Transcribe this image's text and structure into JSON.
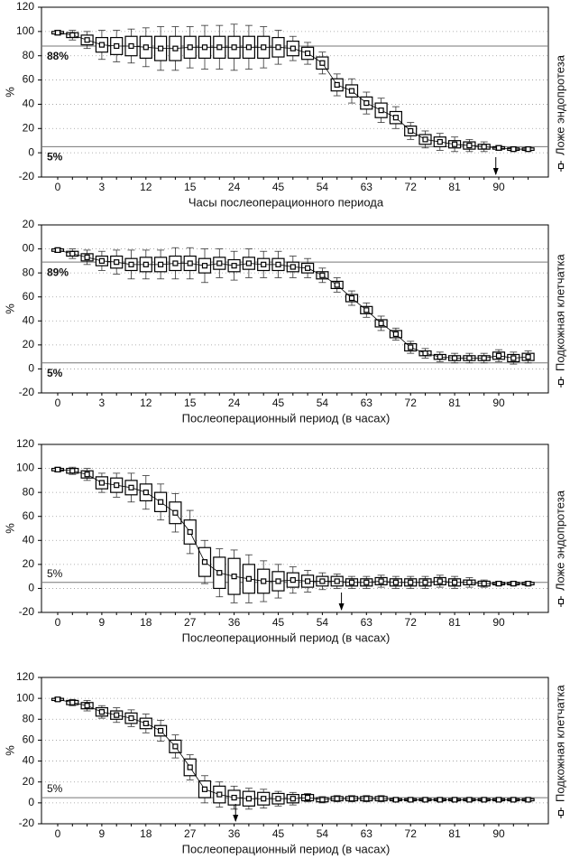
{
  "chart_data": [
    {
      "type": "box",
      "x_label": "Часы послеоперационного периода",
      "y_label": "%",
      "legend": "Ложе эндопротеза",
      "categories": [
        "0",
        null,
        null,
        "3",
        null,
        null,
        "12",
        null,
        null,
        "15",
        null,
        null,
        "24",
        null,
        null,
        "45",
        null,
        null,
        "54",
        null,
        null,
        "63",
        null,
        null,
        "72",
        null,
        null,
        "81",
        null,
        null,
        "90",
        null,
        null
      ],
      "values": [
        99,
        97,
        93,
        89,
        88,
        88,
        87,
        86,
        86,
        87,
        87,
        87,
        87,
        87,
        87,
        87,
        86,
        82,
        74,
        56,
        51,
        41,
        35,
        29,
        18,
        11,
        9,
        7,
        6,
        5,
        4,
        3,
        3
      ],
      "box": [
        1,
        2,
        4,
        6,
        7,
        8,
        9,
        10,
        10,
        9,
        9,
        9,
        9,
        9,
        9,
        8,
        6,
        5,
        5,
        5,
        5,
        5,
        6,
        5,
        4,
        4,
        4,
        3,
        3,
        2,
        1,
        1,
        1
      ],
      "whisker": [
        2,
        4,
        7,
        12,
        13,
        14,
        16,
        18,
        18,
        17,
        18,
        18,
        19,
        18,
        17,
        14,
        10,
        9,
        9,
        9,
        10,
        9,
        10,
        9,
        7,
        7,
        7,
        6,
        5,
        4,
        2,
        2,
        2
      ],
      "ylim": [
        -20,
        120
      ],
      "yticks": [
        -20,
        0,
        20,
        40,
        60,
        80,
        100,
        120
      ],
      "grid": true,
      "ref_lines": [
        {
          "value": 88,
          "label": "88%"
        },
        {
          "value": 5,
          "label": "5%"
        }
      ],
      "ref_label_side": "below",
      "arrow_at": 29.8
    },
    {
      "type": "box",
      "x_label": "Послеоперационный период (в часах)",
      "y_label": "%",
      "legend": "Подкожная клетчатка",
      "categories": [
        "0",
        null,
        null,
        "3",
        null,
        null,
        "12",
        null,
        null,
        "15",
        null,
        null,
        "24",
        null,
        null,
        "45",
        null,
        null,
        "54",
        null,
        null,
        "63",
        null,
        null,
        "72",
        null,
        null,
        "81",
        null,
        null,
        "90",
        null,
        null
      ],
      "values": [
        99,
        96,
        93,
        90,
        89,
        87,
        87,
        87,
        88,
        88,
        86,
        88,
        86,
        88,
        87,
        87,
        85,
        84,
        78,
        70,
        59,
        49,
        38,
        29,
        18,
        13,
        10,
        9,
        9,
        9,
        11,
        9,
        10
      ],
      "box": [
        1,
        2,
        3,
        4,
        5,
        5,
        6,
        6,
        6,
        6,
        6,
        5,
        5,
        5,
        5,
        5,
        4,
        4,
        3,
        3,
        3,
        3,
        3,
        3,
        3,
        2,
        2,
        2,
        2,
        2,
        3,
        3,
        3
      ],
      "whisker": [
        2,
        4,
        6,
        8,
        10,
        12,
        12,
        12,
        13,
        13,
        14,
        12,
        12,
        12,
        11,
        11,
        9,
        8,
        6,
        6,
        6,
        6,
        6,
        5,
        5,
        4,
        4,
        4,
        4,
        4,
        5,
        5,
        5
      ],
      "ylim": [
        -20,
        120
      ],
      "yticks": [
        -20,
        0,
        20,
        40,
        60,
        80,
        {
          "value": 100,
          "label": "00"
        },
        {
          "value": 120,
          "label": "20"
        }
      ],
      "grid": true,
      "ref_lines": [
        {
          "value": 89,
          "label": "89%"
        },
        {
          "value": 5,
          "label": "5%"
        }
      ],
      "ref_label_side": "below"
    },
    {
      "type": "box",
      "x_label": "Послеоперационный период (в часах)",
      "y_label": "%",
      "legend": "Ложе эндопротеза",
      "categories": [
        "0",
        null,
        null,
        "9",
        null,
        null,
        "18",
        null,
        null,
        "27",
        null,
        null,
        "36",
        null,
        null,
        "45",
        null,
        null,
        "54",
        null,
        null,
        "63",
        null,
        null,
        "72",
        null,
        null,
        "81",
        null,
        null,
        "90",
        null,
        null
      ],
      "values": [
        99,
        98,
        95,
        88,
        86,
        84,
        80,
        72,
        63,
        47,
        22,
        13,
        10,
        8,
        6,
        6,
        7,
        6,
        6,
        6,
        5,
        5,
        6,
        5,
        5,
        5,
        6,
        5,
        5,
        4,
        4,
        4,
        4
      ],
      "box": [
        1,
        2,
        3,
        5,
        6,
        6,
        7,
        8,
        9,
        10,
        12,
        13,
        15,
        12,
        10,
        8,
        6,
        5,
        4,
        4,
        3,
        3,
        3,
        3,
        3,
        3,
        3,
        3,
        2,
        2,
        1,
        1,
        1
      ],
      "whisker": [
        2,
        3,
        5,
        8,
        10,
        12,
        14,
        15,
        16,
        18,
        18,
        20,
        22,
        20,
        17,
        14,
        11,
        9,
        7,
        6,
        5,
        5,
        5,
        5,
        5,
        5,
        5,
        5,
        4,
        3,
        2,
        2,
        2
      ],
      "ylim": [
        -20,
        120
      ],
      "yticks": [
        -20,
        0,
        20,
        40,
        60,
        80,
        100,
        120
      ],
      "grid": true,
      "ref_lines": [
        {
          "value": 5,
          "label": "5%"
        }
      ],
      "ref_label_side": "above",
      "arrow_at": 19.3
    },
    {
      "type": "box",
      "x_label": "Послеоперационный период (в часах)",
      "y_label": "%",
      "legend": "Подкожная клетчатка",
      "categories": [
        "0",
        null,
        null,
        "9",
        null,
        null,
        "18",
        null,
        null,
        "27",
        null,
        null,
        "36",
        null,
        null,
        "45",
        null,
        null,
        "54",
        null,
        null,
        "63",
        null,
        null,
        "72",
        null,
        null,
        "81",
        null,
        null,
        "90",
        null,
        null
      ],
      "values": [
        99,
        96,
        93,
        87,
        84,
        81,
        76,
        69,
        54,
        34,
        13,
        8,
        5,
        4,
        4,
        4,
        4,
        5,
        3,
        4,
        4,
        4,
        4,
        3,
        3,
        3,
        3,
        3,
        3,
        3,
        3,
        3,
        3
      ],
      "box": [
        1,
        2,
        3,
        4,
        4,
        5,
        5,
        5,
        6,
        8,
        8,
        8,
        7,
        7,
        6,
        5,
        4,
        3,
        2,
        2,
        2,
        2,
        2,
        1,
        1,
        1,
        1,
        1,
        1,
        1,
        1,
        1,
        1
      ],
      "whisker": [
        2,
        3,
        5,
        6,
        7,
        8,
        9,
        10,
        11,
        12,
        13,
        12,
        11,
        10,
        9,
        7,
        6,
        4,
        3,
        3,
        3,
        3,
        3,
        2,
        2,
        2,
        2,
        2,
        2,
        2,
        2,
        2,
        2
      ],
      "ylim": [
        -20,
        120
      ],
      "yticks": [
        -20,
        0,
        20,
        40,
        60,
        80,
        100,
        120
      ],
      "grid": true,
      "ref_lines": [
        {
          "value": 5,
          "label": "5%"
        }
      ],
      "ref_label_side": "above",
      "arrow_at": 12.1
    }
  ]
}
